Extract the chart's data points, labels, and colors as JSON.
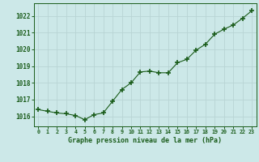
{
  "x": [
    0,
    1,
    2,
    3,
    4,
    5,
    6,
    7,
    8,
    9,
    10,
    11,
    12,
    13,
    14,
    15,
    16,
    17,
    18,
    19,
    20,
    21,
    22,
    23
  ],
  "y": [
    1016.4,
    1016.3,
    1016.2,
    1016.15,
    1016.05,
    1015.8,
    1016.1,
    1016.2,
    1016.9,
    1017.6,
    1018.0,
    1018.65,
    1018.7,
    1018.6,
    1018.6,
    1019.2,
    1019.4,
    1019.95,
    1020.3,
    1020.9,
    1021.2,
    1021.45,
    1021.85,
    1022.3
  ],
  "line_color": "#1a5c1a",
  "marker_color": "#1a5c1a",
  "bg_color": "#cce8e8",
  "grid_color": "#b8d4d4",
  "tick_label_color": "#1a5c1a",
  "xlabel": "Graphe pression niveau de la mer (hPa)",
  "ylim": [
    1015.4,
    1022.75
  ],
  "yticks": [
    1016,
    1017,
    1018,
    1019,
    1020,
    1021,
    1022
  ],
  "xlim": [
    -0.5,
    23.5
  ],
  "xticks": [
    0,
    1,
    2,
    3,
    4,
    5,
    6,
    7,
    8,
    9,
    10,
    11,
    12,
    13,
    14,
    15,
    16,
    17,
    18,
    19,
    20,
    21,
    22,
    23
  ]
}
